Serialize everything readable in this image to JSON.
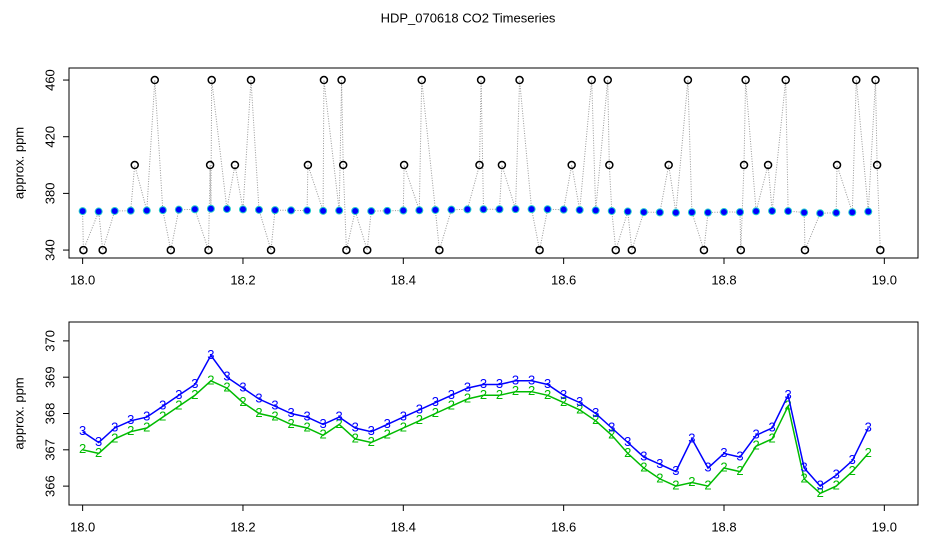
{
  "title": "HDP_070618  CO2 Timeseries",
  "chart_data": [
    {
      "type": "line",
      "y_label": "approx. ppm",
      "xlim": [
        17.983,
        19.042
      ],
      "ylim": [
        334.4,
        468.5
      ],
      "xticks": [
        {
          "value": 18,
          "label": "18.0"
        },
        18.2,
        18.4,
        18.6,
        18.8,
        {
          "value": 19,
          "label": "19.0"
        }
      ],
      "yticks": [
        340,
        380,
        420,
        460
      ],
      "series": [
        {
          "color": "#999999",
          "line": "dotted",
          "x": [
            18.0,
            18.001,
            18.02,
            18.025,
            18.04,
            18.06,
            18.065,
            18.08,
            18.09,
            18.1,
            18.11,
            18.12,
            18.14,
            18.157,
            18.159,
            18.16,
            18.161,
            18.18,
            18.19,
            18.2,
            18.21,
            18.22,
            18.235,
            18.24,
            18.26,
            18.28,
            18.281,
            18.3,
            18.301,
            18.32,
            18.323,
            18.325,
            18.329,
            18.34,
            18.355,
            18.36,
            18.38,
            18.4,
            18.401,
            18.42,
            18.423,
            18.44,
            18.445,
            18.46,
            18.48,
            18.495,
            18.497,
            18.5,
            18.52,
            18.523,
            18.54,
            18.545,
            18.56,
            18.57,
            18.58,
            18.6,
            18.61,
            18.62,
            18.635,
            18.64,
            18.655,
            18.657,
            18.66,
            18.665,
            18.68,
            18.685,
            18.7,
            18.72,
            18.731,
            18.74,
            18.755,
            18.76,
            18.775,
            18.78,
            18.8,
            18.82,
            18.821,
            18.825,
            18.827,
            18.84,
            18.855,
            18.86,
            18.877,
            18.88,
            18.9,
            18.901,
            18.92,
            18.94,
            18.941,
            18.96,
            18.965,
            18.98,
            18.989,
            18.991,
            18.995
          ],
          "values": [
            367.5,
            340,
            367.2,
            340,
            367.6,
            367.8,
            400,
            367.9,
            460,
            368.2,
            340,
            368.5,
            368.8,
            340,
            400,
            369.2,
            460,
            369.0,
            400,
            368.7,
            460,
            368.4,
            340,
            368.2,
            368.0,
            367.9,
            400,
            367.7,
            460,
            367.9,
            460,
            400,
            340,
            367.6,
            340,
            367.5,
            367.7,
            367.9,
            400,
            368.1,
            460,
            368.3,
            340,
            368.5,
            368.7,
            400,
            460,
            368.8,
            368.8,
            400,
            368.9,
            460,
            368.9,
            340,
            368.8,
            368.5,
            400,
            368.3,
            460,
            368.0,
            460,
            400,
            367.6,
            340,
            367.2,
            340,
            366.8,
            366.6,
            400,
            366.4,
            460,
            366.7,
            340,
            366.5,
            366.9,
            366.8,
            340,
            400,
            460,
            367.4,
            400,
            367.6,
            460,
            367.5,
            366.5,
            340,
            366.0,
            366.3,
            400,
            366.7,
            460,
            367.2,
            460,
            400,
            340
          ]
        },
        {
          "color": "#0000ff",
          "marker": "circle",
          "x": [
            18.0,
            18.02,
            18.04,
            18.06,
            18.08,
            18.1,
            18.12,
            18.14,
            18.16,
            18.18,
            18.2,
            18.22,
            18.24,
            18.26,
            18.28,
            18.3,
            18.32,
            18.34,
            18.36,
            18.38,
            18.4,
            18.42,
            18.44,
            18.46,
            18.48,
            18.5,
            18.52,
            18.54,
            18.56,
            18.58,
            18.6,
            18.62,
            18.64,
            18.66,
            18.68,
            18.7,
            18.72,
            18.74,
            18.76,
            18.78,
            18.8,
            18.82,
            18.84,
            18.86,
            18.88,
            18.9,
            18.92,
            18.94,
            18.96,
            18.98
          ],
          "values": [
            367.5,
            367.2,
            367.6,
            367.8,
            367.9,
            368.2,
            368.5,
            368.8,
            369.2,
            369.0,
            368.7,
            368.4,
            368.2,
            368.0,
            367.9,
            367.7,
            367.9,
            367.6,
            367.5,
            367.7,
            367.9,
            368.1,
            368.3,
            368.5,
            368.7,
            368.8,
            368.8,
            368.9,
            368.9,
            368.8,
            368.5,
            368.3,
            368.0,
            367.6,
            367.2,
            366.8,
            366.6,
            366.4,
            366.7,
            366.5,
            366.9,
            366.8,
            367.4,
            367.6,
            367.5,
            366.5,
            366.0,
            366.3,
            366.7,
            367.2
          ]
        },
        {
          "color": "#000000",
          "marker": "open-circle",
          "x": [
            18.001,
            18.025,
            18.065,
            18.09,
            18.11,
            18.157,
            18.159,
            18.161,
            18.19,
            18.21,
            18.235,
            18.281,
            18.301,
            18.323,
            18.325,
            18.329,
            18.355,
            18.401,
            18.423,
            18.445,
            18.495,
            18.497,
            18.523,
            18.545,
            18.57,
            18.61,
            18.635,
            18.655,
            18.657,
            18.665,
            18.685,
            18.731,
            18.755,
            18.775,
            18.821,
            18.825,
            18.827,
            18.855,
            18.877,
            18.901,
            18.941,
            18.965,
            18.989,
            18.991,
            18.995
          ],
          "values": [
            340,
            340,
            400,
            460,
            340,
            340,
            400,
            460,
            400,
            460,
            340,
            400,
            460,
            460,
            400,
            340,
            340,
            400,
            460,
            340,
            400,
            460,
            400,
            460,
            340,
            400,
            460,
            460,
            400,
            340,
            340,
            400,
            460,
            340,
            340,
            400,
            460,
            400,
            460,
            340,
            400,
            460,
            460,
            400,
            340
          ]
        }
      ]
    },
    {
      "type": "line",
      "y_label": "approx. ppm",
      "xlim": [
        17.983,
        19.042
      ],
      "ylim": [
        365.48,
        370.52
      ],
      "xticks": [
        {
          "value": 18,
          "label": "18.0"
        },
        18.2,
        18.4,
        18.6,
        18.8,
        {
          "value": 19,
          "label": "19.0"
        }
      ],
      "yticks": [
        366,
        367,
        368,
        369,
        370
      ],
      "series": [
        {
          "name": "2",
          "color": "#00bb00",
          "line": "solid",
          "marker": "label",
          "x": [
            18.0,
            18.02,
            18.04,
            18.06,
            18.08,
            18.1,
            18.12,
            18.14,
            18.16,
            18.18,
            18.2,
            18.22,
            18.24,
            18.26,
            18.28,
            18.3,
            18.32,
            18.34,
            18.36,
            18.38,
            18.4,
            18.42,
            18.44,
            18.46,
            18.48,
            18.5,
            18.52,
            18.54,
            18.56,
            18.58,
            18.6,
            18.62,
            18.64,
            18.66,
            18.68,
            18.7,
            18.72,
            18.74,
            18.76,
            18.78,
            18.8,
            18.82,
            18.84,
            18.86,
            18.88,
            18.9,
            18.92,
            18.94,
            18.96,
            18.98
          ],
          "values": [
            367.0,
            366.9,
            367.3,
            367.5,
            367.6,
            367.9,
            368.2,
            368.5,
            368.9,
            368.7,
            368.3,
            368.0,
            367.9,
            367.7,
            367.6,
            367.4,
            367.7,
            367.3,
            367.2,
            367.4,
            367.6,
            367.8,
            368.0,
            368.2,
            368.4,
            368.5,
            368.5,
            368.6,
            368.6,
            368.5,
            368.3,
            368.1,
            367.8,
            367.4,
            366.9,
            366.5,
            366.2,
            366.0,
            366.1,
            366.0,
            366.5,
            366.4,
            367.1,
            367.3,
            368.2,
            366.2,
            365.8,
            366.0,
            366.4,
            366.9
          ]
        },
        {
          "name": "3",
          "color": "#0000ff",
          "line": "solid",
          "marker": "label",
          "x": [
            18.0,
            18.02,
            18.04,
            18.06,
            18.08,
            18.1,
            18.12,
            18.14,
            18.16,
            18.18,
            18.2,
            18.22,
            18.24,
            18.26,
            18.28,
            18.3,
            18.32,
            18.34,
            18.36,
            18.38,
            18.4,
            18.42,
            18.44,
            18.46,
            18.48,
            18.5,
            18.52,
            18.54,
            18.56,
            18.58,
            18.6,
            18.62,
            18.64,
            18.66,
            18.68,
            18.7,
            18.72,
            18.74,
            18.76,
            18.78,
            18.8,
            18.82,
            18.84,
            18.86,
            18.88,
            18.9,
            18.92,
            18.94,
            18.96,
            18.98
          ],
          "values": [
            367.5,
            367.2,
            367.6,
            367.8,
            367.9,
            368.2,
            368.5,
            368.8,
            369.6,
            369.0,
            368.7,
            368.4,
            368.2,
            368.0,
            367.9,
            367.7,
            367.9,
            367.6,
            367.5,
            367.7,
            367.9,
            368.1,
            368.3,
            368.5,
            368.7,
            368.8,
            368.8,
            368.9,
            368.9,
            368.8,
            368.5,
            368.3,
            368.0,
            367.6,
            367.2,
            366.8,
            366.6,
            366.4,
            367.3,
            366.5,
            366.9,
            366.8,
            367.4,
            367.6,
            368.5,
            366.5,
            366.0,
            366.3,
            366.7,
            367.6
          ]
        }
      ]
    }
  ]
}
